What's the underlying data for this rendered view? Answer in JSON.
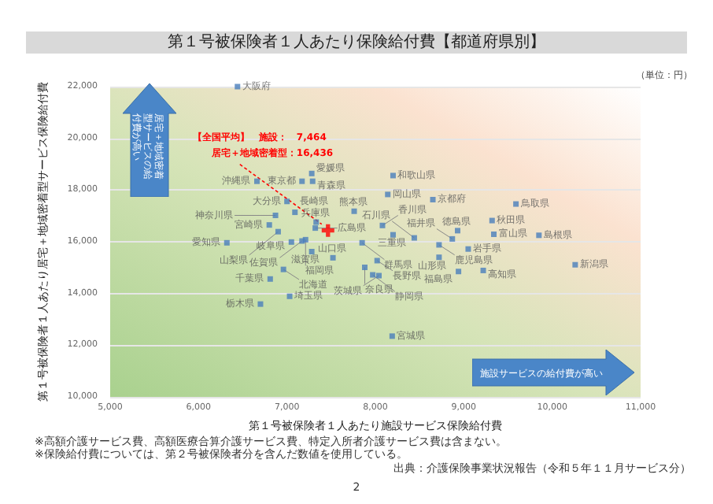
{
  "chart_data": {
    "type": "scatter",
    "title": "第１号被保険者１人あたり保険給付費【都道府県別】",
    "subtitle": "（単位：円）",
    "xlabel": "第１号被保険者１人あたり施設サービス保険給付費",
    "ylabel": "第１号被保険者１人あたり居宅＋地域密着型サービス保険給付費",
    "xlim": [
      5000,
      11000
    ],
    "xticks": [
      {
        "value": 5000,
        "label": "5,000"
      },
      {
        "value": 6000,
        "label": "6,000"
      },
      {
        "value": 7000,
        "label": "7,000"
      },
      {
        "value": 8000,
        "label": "8,000"
      },
      {
        "value": 9000,
        "label": "9,000"
      },
      {
        "value": 10000,
        "label": "10,000"
      },
      {
        "value": 11000,
        "label": "11,000"
      }
    ],
    "ylim": [
      10000,
      22000
    ],
    "yticks": [
      {
        "value": 10000,
        "label": "10,000"
      },
      {
        "value": 12000,
        "label": "12,000"
      },
      {
        "value": 14000,
        "label": "14,000"
      },
      {
        "value": 16000,
        "label": "16,000"
      },
      {
        "value": 18000,
        "label": "18,000"
      },
      {
        "value": 20000,
        "label": "20,000"
      },
      {
        "value": 22000,
        "label": "22,000"
      }
    ],
    "grid": "y",
    "marker": "square",
    "annotations": [
      "居宅＋地域密着型サービスの給付費が高い",
      "施設サービスの給付費が高い",
      "【全国平均】　施設：　7,464",
      {
        "text": "居宅＋地域密着型：16,436",
        "x": 7464,
        "y": 16436
      },
      "※高額介護サービス費、高額医療合算介護サービス費、特定入所者介護サービス費は含まない。",
      "※保険給付費については、第２号被保険者分を含んだ数値を使用している。",
      "出典：介護保険事業状況報告（令和５年１１月サービス分）",
      "2"
    ],
    "series": [
      {
        "name": "大阪府",
        "color": "#4a7ebb",
        "x": [
          6440
        ],
        "values": [
          22000
        ]
      },
      {
        "name": "沖縄県",
        "color": "#4a7ebb",
        "x": [
          6660
        ],
        "values": [
          18340
        ]
      },
      {
        "name": "愛媛県",
        "color": "#4a7ebb",
        "x": [
          7280
        ],
        "values": [
          18640
        ]
      },
      {
        "name": "東京都",
        "color": "#4a7ebb",
        "x": [
          7170
        ],
        "values": [
          18340
        ]
      },
      {
        "name": "青森県",
        "color": "#4a7ebb",
        "x": [
          7290
        ],
        "values": [
          18340
        ]
      },
      {
        "name": "大分県",
        "color": "#4a7ebb",
        "x": [
          7000
        ],
        "values": [
          17560
        ]
      },
      {
        "name": "長崎県",
        "color": "#4a7ebb",
        "x": [
          7090
        ],
        "values": [
          17140
        ]
      },
      {
        "name": "神奈川県",
        "color": "#4a7ebb",
        "x": [
          6870
        ],
        "values": [
          17020
        ]
      },
      {
        "name": "兵庫県",
        "color": "#4a7ebb",
        "x": [
          7330
        ],
        "values": [
          16760
        ]
      },
      {
        "name": "宮崎県",
        "color": "#4a7ebb",
        "x": [
          6800
        ],
        "values": [
          16650
        ]
      },
      {
        "name": "広島県",
        "color": "#4a7ebb",
        "x": [
          7320
        ],
        "values": [
          16530
        ]
      },
      {
        "name": "山梨県",
        "color": "#4a7ebb",
        "x": [
          6900
        ],
        "values": [
          16390
        ]
      },
      {
        "name": "福岡県",
        "color": "#4a7ebb",
        "x": [
          7210
        ],
        "values": [
          16080
        ]
      },
      {
        "name": "愛知県",
        "color": "#4a7ebb",
        "x": [
          6320
        ],
        "values": [
          15960
        ]
      },
      {
        "name": "岐阜県",
        "color": "#4a7ebb",
        "x": [
          7050
        ],
        "values": [
          15990
        ]
      },
      {
        "name": "佐賀県",
        "color": "#4a7ebb",
        "x": [
          7170
        ],
        "values": [
          16030
        ]
      },
      {
        "name": "滋賀県",
        "color": "#4a7ebb",
        "x": [
          7280
        ],
        "values": [
          15620
        ]
      },
      {
        "name": "山口県",
        "color": "#4a7ebb",
        "x": [
          7520
        ],
        "values": [
          15380
        ]
      },
      {
        "name": "北海道",
        "color": "#4a7ebb",
        "x": [
          6960
        ],
        "values": [
          14930
        ]
      },
      {
        "name": "千葉県",
        "color": "#4a7ebb",
        "x": [
          6810
        ],
        "values": [
          14560
        ]
      },
      {
        "name": "埼玉県",
        "color": "#4a7ebb",
        "x": [
          7030
        ],
        "values": [
          13890
        ]
      },
      {
        "name": "栃木県",
        "color": "#4a7ebb",
        "x": [
          6700
        ],
        "values": [
          13590
        ]
      },
      {
        "name": "和歌山県",
        "color": "#4a7ebb",
        "x": [
          8200
        ],
        "values": [
          18560
        ]
      },
      {
        "name": "岡山県",
        "color": "#4a7ebb",
        "x": [
          8140
        ],
        "values": [
          17830
        ]
      },
      {
        "name": "京都府",
        "color": "#4a7ebb",
        "x": [
          8650
        ],
        "values": [
          17630
        ]
      },
      {
        "name": "鳥取県",
        "color": "#4a7ebb",
        "x": [
          9590
        ],
        "values": [
          17460
        ]
      },
      {
        "name": "熊本県",
        "color": "#4a7ebb",
        "x": [
          7760
        ],
        "values": [
          17180
        ]
      },
      {
        "name": "秋田県",
        "color": "#4a7ebb",
        "x": [
          9320
        ],
        "values": [
          16820
        ]
      },
      {
        "name": "香川県",
        "color": "#4a7ebb",
        "x": [
          8080
        ],
        "values": [
          16630
        ]
      },
      {
        "name": "徳島県",
        "color": "#4a7ebb",
        "x": [
          8930
        ],
        "values": [
          16430
        ]
      },
      {
        "name": "三重県",
        "color": "#4a7ebb",
        "x": [
          8200
        ],
        "values": [
          16270
        ]
      },
      {
        "name": "石川県",
        "color": "#4a7ebb",
        "x": [
          8440
        ],
        "values": [
          16150
        ]
      },
      {
        "name": "富山県",
        "color": "#4a7ebb",
        "x": [
          9340
        ],
        "values": [
          16290
        ]
      },
      {
        "name": "島根県",
        "color": "#4a7ebb",
        "x": [
          9850
        ],
        "values": [
          16250
        ]
      },
      {
        "name": "福井県",
        "color": "#4a7ebb",
        "x": [
          8870
        ],
        "values": [
          16110
        ]
      },
      {
        "name": "群馬県",
        "color": "#4a7ebb",
        "x": [
          7850
        ],
        "values": [
          15960
        ]
      },
      {
        "name": "鹿児島県",
        "color": "#4a7ebb",
        "x": [
          8720
        ],
        "values": [
          15880
        ]
      },
      {
        "name": "岩手県",
        "color": "#4a7ebb",
        "x": [
          9050
        ],
        "values": [
          15720
        ]
      },
      {
        "name": "山形県",
        "color": "#4a7ebb",
        "x": [
          8720
        ],
        "values": [
          15400
        ]
      },
      {
        "name": "長野県",
        "color": "#4a7ebb",
        "x": [
          8020
        ],
        "values": [
          15270
        ]
      },
      {
        "name": "奈良県",
        "color": "#4a7ebb",
        "x": [
          7880
        ],
        "values": [
          15010
        ]
      },
      {
        "name": "静岡県",
        "color": "#4a7ebb",
        "x": [
          7970
        ],
        "values": [
          14720
        ]
      },
      {
        "name": "茨城県",
        "color": "#4a7ebb",
        "x": [
          8040
        ],
        "values": [
          14690
        ]
      },
      {
        "name": "福島県",
        "color": "#4a7ebb",
        "x": [
          8940
        ],
        "values": [
          14850
        ]
      },
      {
        "name": "高知県",
        "color": "#4a7ebb",
        "x": [
          9220
        ],
        "values": [
          14890
        ]
      },
      {
        "name": "新潟県",
        "color": "#4a7ebb",
        "x": [
          10260
        ],
        "values": [
          15110
        ]
      },
      {
        "name": "宮城県",
        "color": "#4a7ebb",
        "x": [
          8190
        ],
        "values": [
          12350
        ]
      },
      {
        "color": "#ff0000",
        "x": [
          7464
        ],
        "values": [
          16436
        ],
        "marker": "cross"
      }
    ]
  }
}
